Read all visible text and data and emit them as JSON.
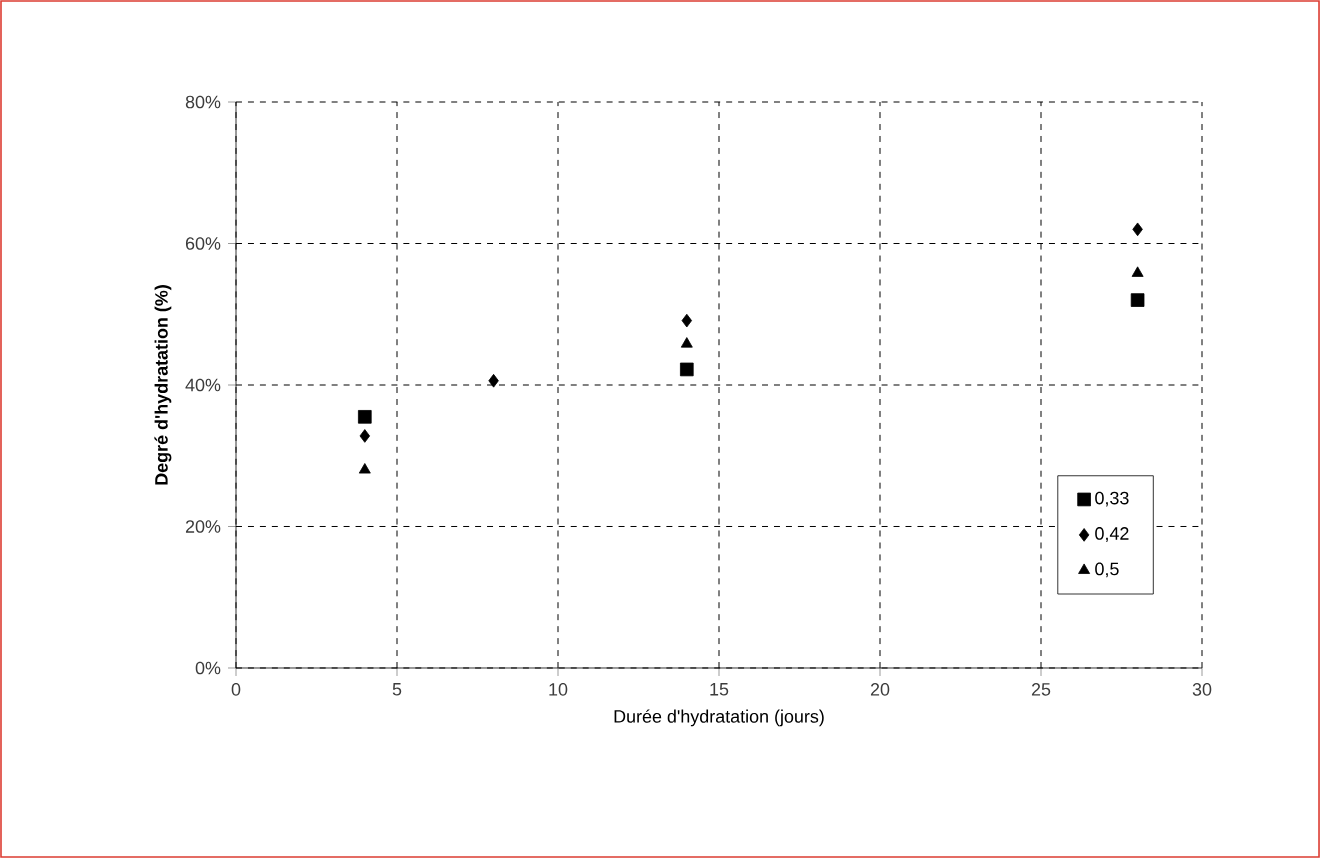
{
  "chart_data": {
    "type": "scatter",
    "xlabel": "Durée d'hydratation (jours)",
    "ylabel": "Degré d'hydratation  (%)",
    "xlim": [
      0,
      30
    ],
    "xticks": [
      0,
      5,
      10,
      15,
      20,
      25,
      30
    ],
    "ylim": [
      0,
      80
    ],
    "yticks": [
      {
        "value": 0,
        "label": "0%"
      },
      {
        "value": 20,
        "label": "20%"
      },
      {
        "value": 40,
        "label": "40%"
      },
      {
        "value": 60,
        "label": "60%"
      },
      {
        "value": 80,
        "label": "80%"
      }
    ],
    "grid": true,
    "legend": "bottom right",
    "series": [
      {
        "name": "0,33",
        "color": "#000000",
        "marker": "square",
        "x": [
          4,
          14,
          28
        ],
        "values": [
          35.5,
          42.2,
          52
        ]
      },
      {
        "name": "0,42",
        "color": "#000000",
        "marker": "diamond",
        "x": [
          4,
          8,
          14,
          28
        ],
        "values": [
          32.8,
          40.6,
          49.1,
          62
        ]
      },
      {
        "name": "0,5",
        "color": "#000000",
        "marker": "triangle",
        "x": [
          4,
          14,
          28
        ],
        "values": [
          28,
          45.8,
          55.8
        ]
      }
    ]
  }
}
